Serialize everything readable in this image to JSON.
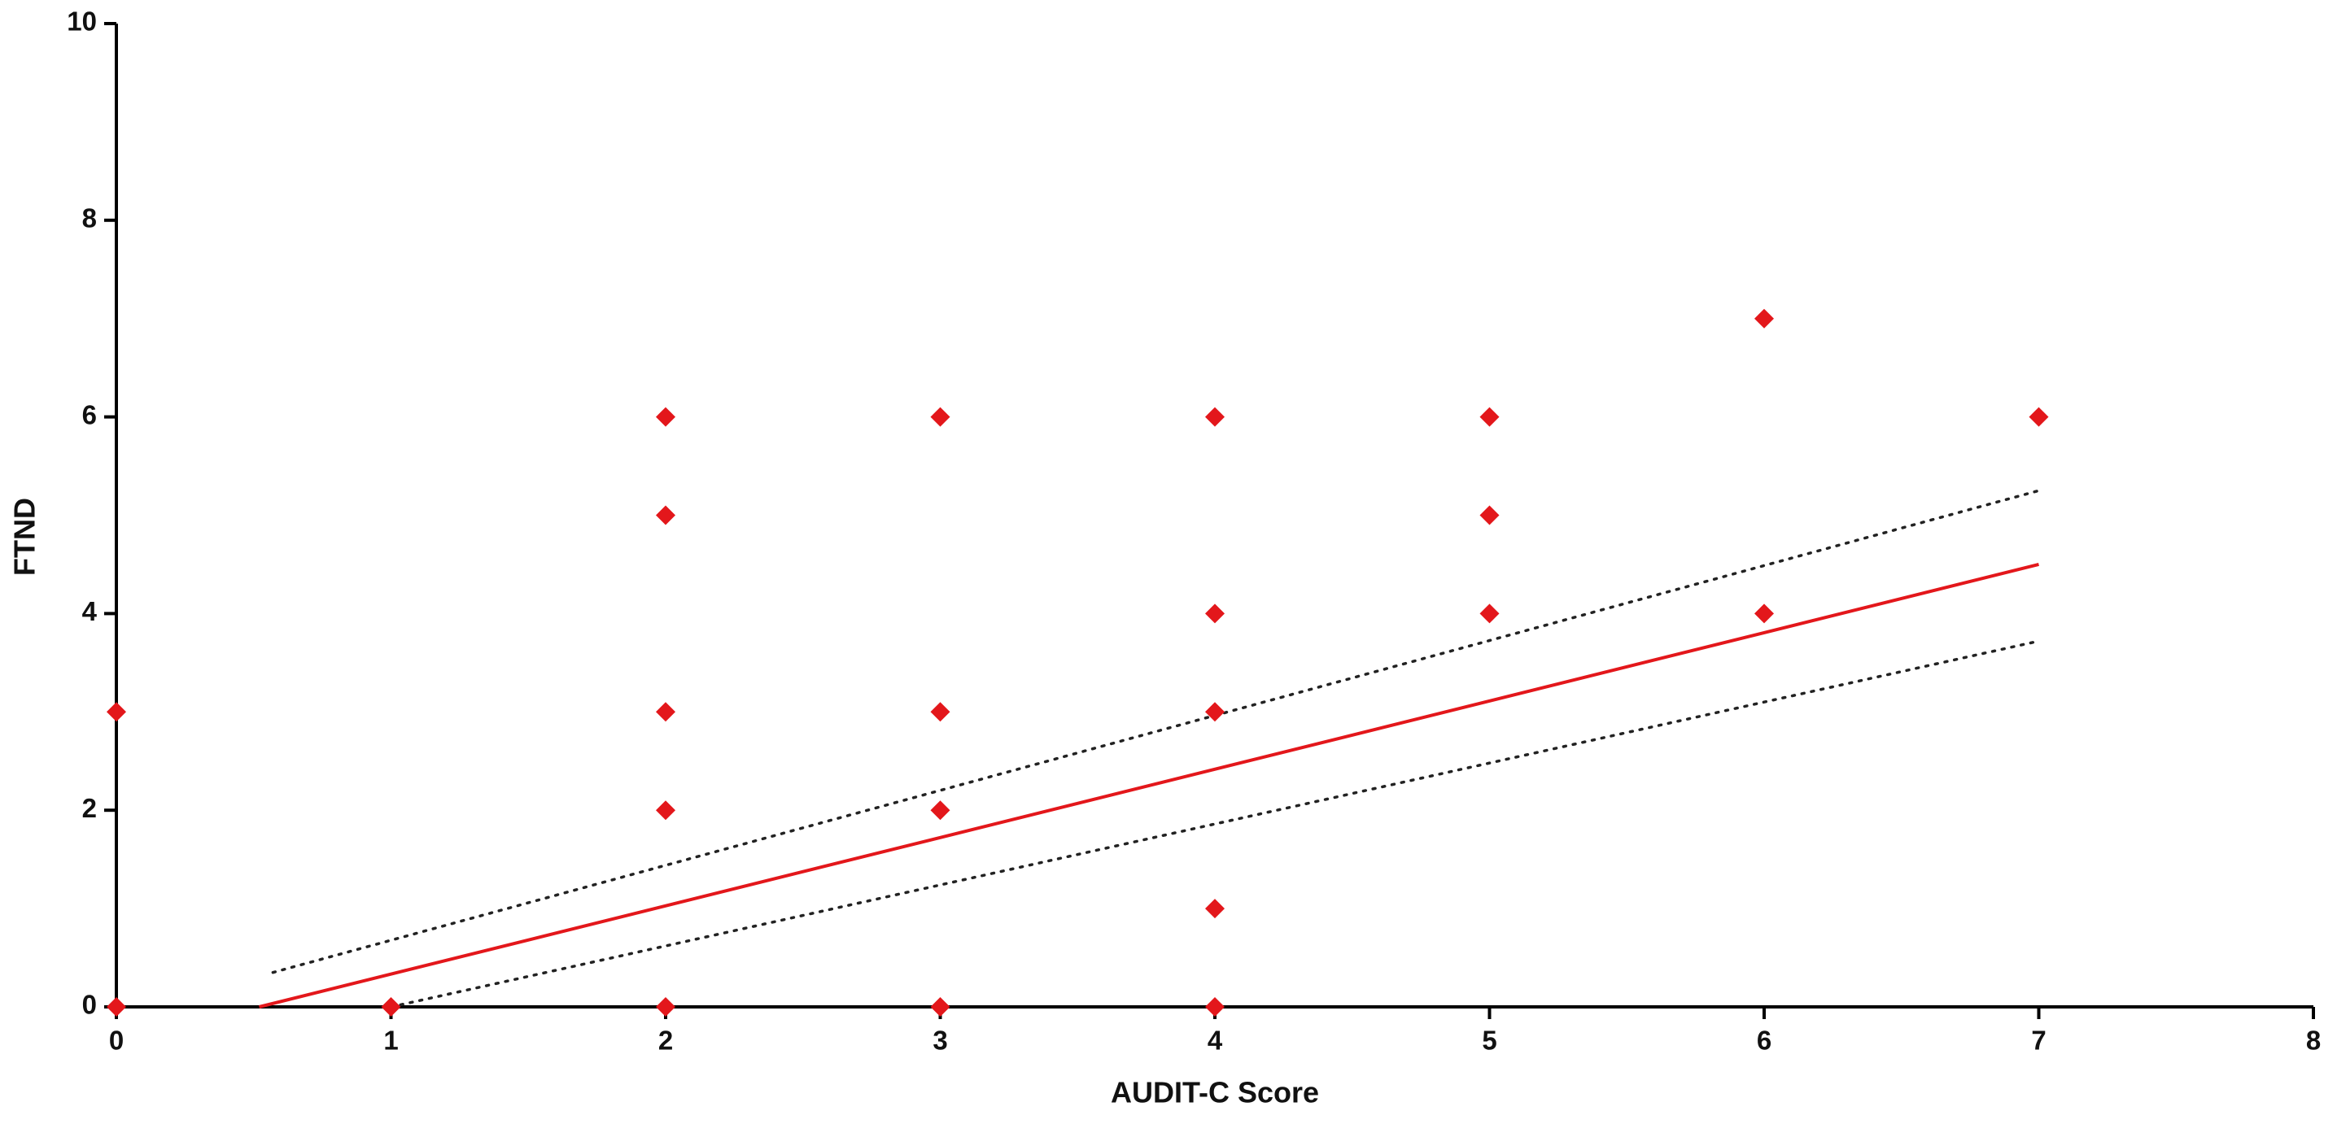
{
  "chart_data": {
    "type": "scatter",
    "x_label": "AUDIT-C Score",
    "y_label": "FTND",
    "xlim": [
      0,
      8
    ],
    "xticks": [
      0,
      1,
      2,
      3,
      4,
      5,
      6,
      7,
      8
    ],
    "ylim": [
      0,
      10
    ],
    "yticks": [
      0,
      2,
      4,
      6,
      8,
      10
    ],
    "grid": false,
    "series": [
      {
        "type": "scatter",
        "marker": "diamond",
        "color": "#e3171b",
        "x": [
          0,
          0,
          1,
          2,
          2,
          2,
          2,
          2,
          3,
          3,
          3,
          3,
          4,
          4,
          4,
          4,
          4,
          5,
          5,
          5,
          6,
          6,
          7
        ],
        "values": [
          0,
          3,
          0,
          0,
          2,
          3,
          5,
          6,
          0,
          2,
          3,
          6,
          0,
          1,
          3,
          4,
          6,
          4,
          5,
          6,
          4,
          7,
          6
        ]
      },
      {
        "type": "line",
        "dash": "solid",
        "color": "#e3171b",
        "x": [
          0.52,
          7
        ],
        "values": [
          0,
          4.5
        ]
      },
      {
        "type": "line",
        "dash": "dotted",
        "color": "#222222",
        "x": [
          0.57,
          7
        ],
        "values": [
          0.35,
          5.25
        ]
      },
      {
        "type": "line",
        "dash": "dotted",
        "color": "#222222",
        "x": [
          1,
          7
        ],
        "values": [
          0,
          3.72
        ]
      }
    ]
  }
}
